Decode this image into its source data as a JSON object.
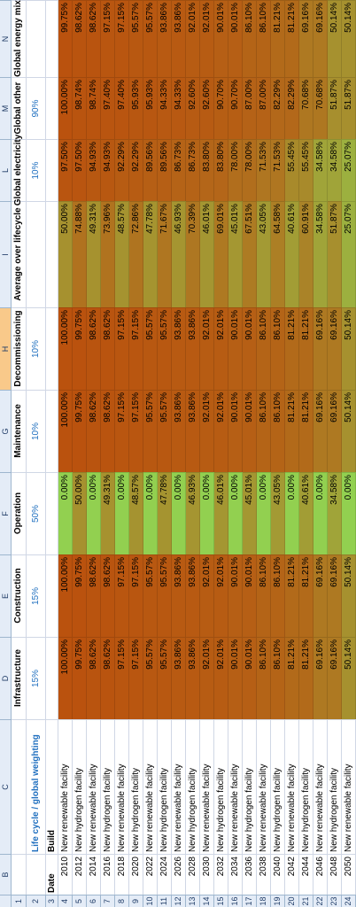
{
  "column_letters": [
    "B",
    "C",
    "D",
    "E",
    "F",
    "G",
    "H",
    "I",
    "L",
    "M",
    "N"
  ],
  "row_numbers": [
    1,
    2,
    3,
    4,
    5,
    6,
    7,
    8,
    9,
    10,
    11,
    12,
    13,
    14,
    15,
    16,
    17,
    18,
    19,
    20,
    21,
    22,
    23,
    24
  ],
  "table": {
    "headers": [
      "Infrastructure",
      "Construction",
      "Operation",
      "Maintenance",
      "Decommissioning",
      "Average over lifecycle",
      "Global electricity",
      "Global other",
      "Global energy mix"
    ],
    "weight_label": "Life cycle / global weighting",
    "weights": {
      "D": "15%",
      "E": "15%",
      "F": "50%",
      "G": "10%",
      "H": "10%",
      "L": "10%",
      "M": "90%"
    },
    "date_header": "Date",
    "build_header": "Build",
    "rows": [
      [
        "2010",
        "New renewable facility",
        "100.00%",
        "100.00%",
        "0.00%",
        "100.00%",
        "100.00%",
        "50.00%",
        "97.50%",
        "100.00%",
        "99.75%"
      ],
      [
        "2012",
        "New hydrogen facility",
        "99.75%",
        "99.75%",
        "50.00%",
        "99.75%",
        "99.75%",
        "74.88%",
        "97.50%",
        "98.74%",
        "98.62%"
      ],
      [
        "2014",
        "New renewable facility",
        "98.62%",
        "98.62%",
        "0.00%",
        "98.62%",
        "98.62%",
        "49.31%",
        "94.93%",
        "98.74%",
        "98.62%"
      ],
      [
        "2016",
        "New hydrogen facility",
        "98.62%",
        "98.62%",
        "49.31%",
        "98.62%",
        "98.62%",
        "73.96%",
        "94.93%",
        "97.40%",
        "97.15%"
      ],
      [
        "2018",
        "New renewable facility",
        "97.15%",
        "97.15%",
        "0.00%",
        "97.15%",
        "97.15%",
        "48.57%",
        "92.29%",
        "97.40%",
        "97.15%"
      ],
      [
        "2020",
        "New hydrogen facility",
        "97.15%",
        "97.15%",
        "48.57%",
        "97.15%",
        "97.15%",
        "72.86%",
        "92.29%",
        "95.93%",
        "95.57%"
      ],
      [
        "2022",
        "New renewable facility",
        "95.57%",
        "95.57%",
        "0.00%",
        "95.57%",
        "95.57%",
        "47.78%",
        "89.56%",
        "95.93%",
        "95.57%"
      ],
      [
        "2024",
        "New hydrogen facility",
        "95.57%",
        "95.57%",
        "47.78%",
        "95.57%",
        "95.57%",
        "71.67%",
        "89.56%",
        "94.33%",
        "93.86%"
      ],
      [
        "2026",
        "New renewable facility",
        "93.86%",
        "93.86%",
        "0.00%",
        "93.86%",
        "93.86%",
        "46.93%",
        "86.73%",
        "94.33%",
        "93.86%"
      ],
      [
        "2028",
        "New hydrogen facility",
        "93.86%",
        "93.86%",
        "46.93%",
        "93.86%",
        "93.86%",
        "70.39%",
        "86.73%",
        "92.60%",
        "92.01%"
      ],
      [
        "2030",
        "New renewable facility",
        "92.01%",
        "92.01%",
        "0.00%",
        "92.01%",
        "92.01%",
        "46.01%",
        "83.80%",
        "92.60%",
        "92.01%"
      ],
      [
        "2032",
        "New hydrogen facility",
        "92.01%",
        "92.01%",
        "46.01%",
        "92.01%",
        "92.01%",
        "69.01%",
        "83.80%",
        "90.70%",
        "90.01%"
      ],
      [
        "2034",
        "New renewable facility",
        "90.01%",
        "90.01%",
        "0.00%",
        "90.01%",
        "90.01%",
        "45.01%",
        "78.00%",
        "90.70%",
        "90.01%"
      ],
      [
        "2036",
        "New hydrogen facility",
        "90.01%",
        "90.01%",
        "45.01%",
        "90.01%",
        "90.01%",
        "67.51%",
        "78.00%",
        "87.00%",
        "86.10%"
      ],
      [
        "2038",
        "New renewable facility",
        "86.10%",
        "86.10%",
        "0.00%",
        "86.10%",
        "86.10%",
        "43.05%",
        "71.53%",
        "87.00%",
        "86.10%"
      ],
      [
        "2040",
        "New hydrogen facility",
        "86.10%",
        "86.10%",
        "43.05%",
        "86.10%",
        "86.10%",
        "64.58%",
        "71.53%",
        "82.29%",
        "81.21%"
      ],
      [
        "2042",
        "New renewable facility",
        "81.21%",
        "81.21%",
        "0.00%",
        "81.21%",
        "81.21%",
        "40.61%",
        "55.45%",
        "82.29%",
        "81.21%"
      ],
      [
        "2044",
        "New hydrogen facility",
        "81.21%",
        "81.21%",
        "40.61%",
        "81.21%",
        "81.21%",
        "60.91%",
        "55.45%",
        "70.68%",
        "69.16%"
      ],
      [
        "2046",
        "New renewable facility",
        "69.16%",
        "69.16%",
        "0.00%",
        "69.16%",
        "69.16%",
        "34.58%",
        "34.58%",
        "70.68%",
        "69.16%"
      ],
      [
        "2048",
        "New hydrogen facility",
        "69.16%",
        "69.16%",
        "34.58%",
        "69.16%",
        "69.16%",
        "51.87%",
        "34.58%",
        "51.87%",
        "50.14%"
      ],
      [
        "2050",
        "New renewable facility",
        "50.14%",
        "50.14%",
        "0.00%",
        "50.14%",
        "50.14%",
        "25.07%",
        "25.07%",
        "51.87%",
        "50.14%"
      ]
    ]
  }
}
